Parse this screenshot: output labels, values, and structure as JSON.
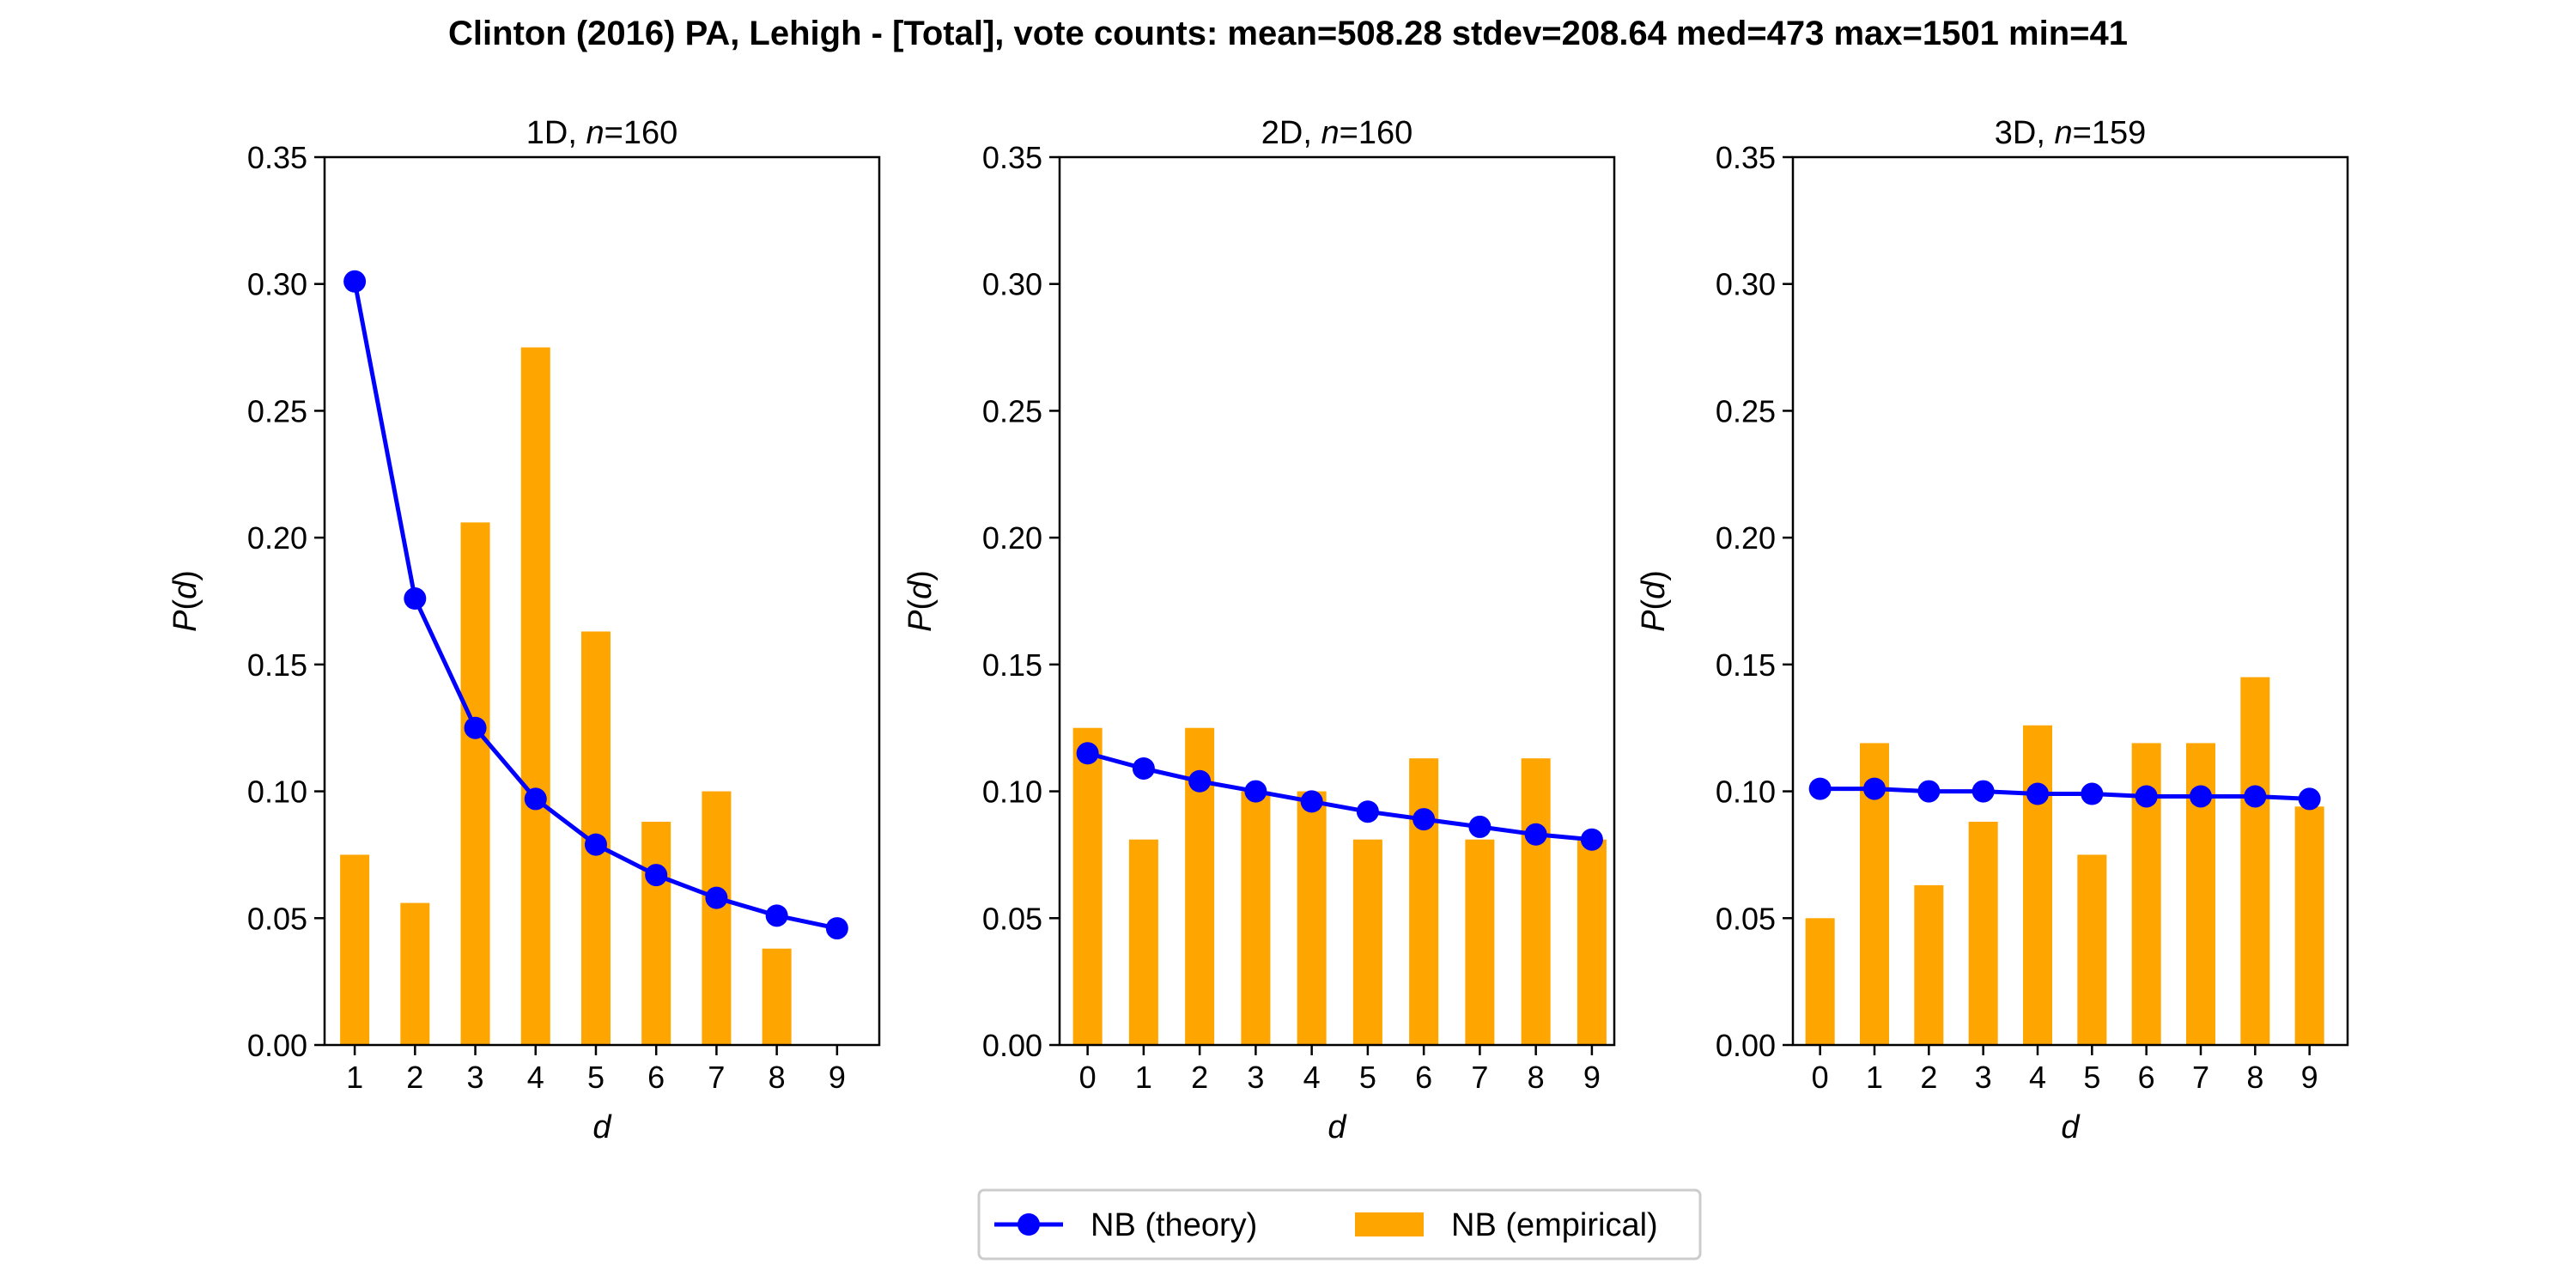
{
  "figure": {
    "title": "Clinton (2016) PA, Lehigh - [Total], vote counts: mean=508.28 stdev=208.64 med=473 max=1501 min=41"
  },
  "legend": {
    "theory_label": "NB (theory)",
    "empirical_label": "NB (empirical)"
  },
  "colors": {
    "theory": "#0000ff",
    "empirical": "#ffa500",
    "axes": "#000000"
  },
  "chart_data": [
    {
      "type": "bar",
      "title_prefix": "1D, ",
      "title_n": "n",
      "title_suffix": "=160",
      "xlabel": "d",
      "ylabel_var": "P",
      "ylabel_arg": "d",
      "xlim": [
        0.5,
        9.7
      ],
      "ylim": [
        0,
        0.35
      ],
      "yticks": [
        "0.00",
        "0.05",
        "0.10",
        "0.15",
        "0.20",
        "0.25",
        "0.30",
        "0.35"
      ],
      "categories": [
        "1",
        "2",
        "3",
        "4",
        "5",
        "6",
        "7",
        "8",
        "9"
      ],
      "series": [
        {
          "name": "NB (empirical)",
          "kind": "bar",
          "values": [
            0.075,
            0.056,
            0.206,
            0.275,
            0.163,
            0.088,
            0.1,
            0.038,
            0.0
          ]
        },
        {
          "name": "NB (theory)",
          "kind": "line",
          "values": [
            0.301,
            0.176,
            0.125,
            0.097,
            0.079,
            0.067,
            0.058,
            0.051,
            0.046
          ]
        }
      ]
    },
    {
      "type": "bar",
      "title_prefix": "2D, ",
      "title_n": "n",
      "title_suffix": "=160",
      "xlabel": "d",
      "ylabel_var": "P",
      "ylabel_arg": "d",
      "xlim": [
        -0.5,
        9.4
      ],
      "ylim": [
        0,
        0.35
      ],
      "yticks": [
        "0.00",
        "0.05",
        "0.10",
        "0.15",
        "0.20",
        "0.25",
        "0.30",
        "0.35"
      ],
      "categories": [
        "0",
        "1",
        "2",
        "3",
        "4",
        "5",
        "6",
        "7",
        "8",
        "9"
      ],
      "series": [
        {
          "name": "NB (empirical)",
          "kind": "bar",
          "values": [
            0.125,
            0.081,
            0.125,
            0.1,
            0.1,
            0.081,
            0.113,
            0.081,
            0.113,
            0.081
          ]
        },
        {
          "name": "NB (theory)",
          "kind": "line",
          "values": [
            0.115,
            0.109,
            0.104,
            0.1,
            0.096,
            0.092,
            0.089,
            0.086,
            0.083,
            0.081
          ]
        }
      ]
    },
    {
      "type": "bar",
      "title_prefix": "3D, ",
      "title_n": "n",
      "title_suffix": "=159",
      "xlabel": "d",
      "ylabel_var": "P",
      "ylabel_arg": "d",
      "xlim": [
        -0.5,
        9.7
      ],
      "ylim": [
        0,
        0.35
      ],
      "yticks": [
        "0.00",
        "0.05",
        "0.10",
        "0.15",
        "0.20",
        "0.25",
        "0.30",
        "0.35"
      ],
      "categories": [
        "0",
        "1",
        "2",
        "3",
        "4",
        "5",
        "6",
        "7",
        "8",
        "9"
      ],
      "series": [
        {
          "name": "NB (empirical)",
          "kind": "bar",
          "values": [
            0.05,
            0.119,
            0.063,
            0.088,
            0.126,
            0.075,
            0.119,
            0.119,
            0.145,
            0.094
          ]
        },
        {
          "name": "NB (theory)",
          "kind": "line",
          "values": [
            0.101,
            0.101,
            0.1,
            0.1,
            0.099,
            0.099,
            0.098,
            0.098,
            0.098,
            0.097
          ]
        }
      ]
    }
  ]
}
